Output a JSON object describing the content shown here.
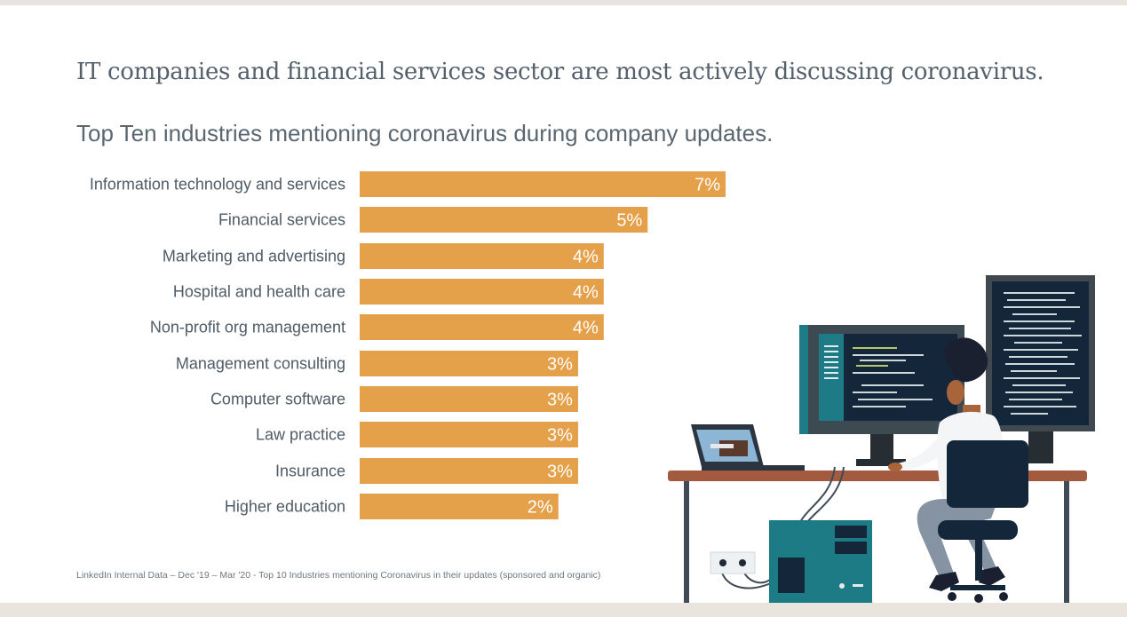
{
  "headline": "IT companies and financial services sector are most actively discussing coronavirus.",
  "subheadline": "Top Ten industries mentioning coronavirus during company updates.",
  "source_note": "LinkedIn Internal Data – Dec '19 – Mar '20 - Top 10 Industries mentioning Coronavirus in their updates (sponsored and organic)",
  "colors": {
    "bar": "#e5a04a",
    "label": "#4f5b66",
    "value_text": "#ffffff",
    "band": "#e9e5de"
  },
  "chart_data": {
    "type": "bar",
    "orientation": "horizontal",
    "categories": [
      "Information technology and services",
      "Financial services",
      "Marketing and advertising",
      "Hospital and health care",
      "Non-profit org management",
      "Management consulting",
      "Computer software",
      "Law practice",
      "Insurance",
      "Higher education"
    ],
    "values": [
      7,
      5,
      4,
      4,
      4,
      3,
      3,
      3,
      3,
      2
    ],
    "value_labels": [
      "7%",
      "5%",
      "4%",
      "4%",
      "4%",
      "3%",
      "3%",
      "3%",
      "3%",
      "2%"
    ],
    "bar_fraction_of_max": [
      1.0,
      0.787,
      0.667,
      0.667,
      0.667,
      0.597,
      0.597,
      0.597,
      0.597,
      0.543
    ],
    "title": "",
    "xlabel": "",
    "ylabel": "",
    "grid": false,
    "legend": "none"
  },
  "illustration": {
    "icon": "person-at-computer-desk-illustration"
  }
}
